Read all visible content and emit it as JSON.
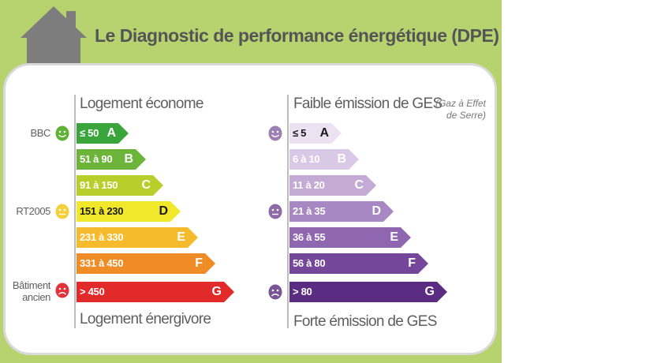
{
  "title": "Le Diagnostic de performance énergétique (DPE)",
  "energy": {
    "top_caption": "Logement économe",
    "bottom_caption": "Logement énergivore",
    "markers": [
      {
        "label": "BBC",
        "icon": "happy-face-icon",
        "color": "#5fb233"
      },
      {
        "label": "RT2005",
        "icon": "neutral-face-icon",
        "color": "#f4d03a"
      },
      {
        "label": "Bâtiment ancien",
        "icon": "sad-face-icon",
        "color": "#e2323a"
      }
    ],
    "classes": [
      {
        "range": "≤ 50",
        "letter": "A",
        "color": "#3aa53a"
      },
      {
        "range": "51 à 90",
        "letter": "B",
        "color": "#6cb53a"
      },
      {
        "range": "91 à 150",
        "letter": "C",
        "color": "#b7cf2a"
      },
      {
        "range": "151 à 230",
        "letter": "D",
        "color": "#f2e82b"
      },
      {
        "range": "231 à 330",
        "letter": "E",
        "color": "#f6bb2d"
      },
      {
        "range": "331 à 450",
        "letter": "F",
        "color": "#ef8c26"
      },
      {
        "range": "> 450",
        "letter": "G",
        "color": "#e32a2a"
      }
    ]
  },
  "ges": {
    "top_caption": "Faible émission de GES",
    "note_line1": "(Gaz à Effet",
    "note_line2": "de Serre)",
    "bottom_caption": "Forte émission de GES",
    "markers": [
      {
        "icon": "happy-face-icon",
        "color": "#9c7fb3"
      },
      {
        "icon": "neutral-face-icon",
        "color": "#8e6aa8"
      },
      {
        "icon": "sad-face-icon",
        "color": "#7a5596"
      }
    ],
    "classes": [
      {
        "range": "≤ 5",
        "letter": "A",
        "color": "#ece2f2"
      },
      {
        "range": "6 à 10",
        "letter": "B",
        "color": "#dac9e6"
      },
      {
        "range": "11 à 20",
        "letter": "C",
        "color": "#c3abd6"
      },
      {
        "range": "21 à 35",
        "letter": "D",
        "color": "#a888c3"
      },
      {
        "range": "36 à 55",
        "letter": "E",
        "color": "#8f67b1"
      },
      {
        "range": "56 à 80",
        "letter": "F",
        "color": "#74479a"
      },
      {
        "range": "> 80",
        "letter": "G",
        "color": "#5a2d83"
      }
    ]
  }
}
